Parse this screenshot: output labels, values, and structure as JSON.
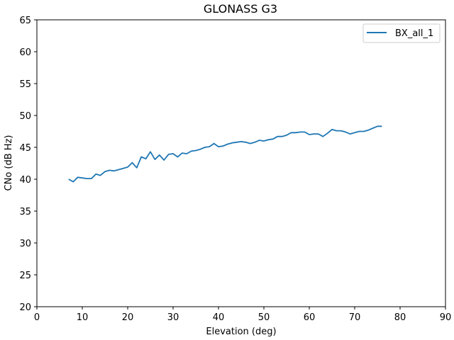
{
  "chart_data": {
    "type": "line",
    "title": "GLONASS G3",
    "xlabel": "Elevation (deg)",
    "ylabel": "CNo (dB Hz)",
    "xlim": [
      0,
      90
    ],
    "ylim": [
      20,
      65
    ],
    "xticks": [
      0,
      10,
      20,
      30,
      40,
      50,
      60,
      70,
      80,
      90
    ],
    "yticks": [
      20,
      25,
      30,
      35,
      40,
      45,
      50,
      55,
      60,
      65
    ],
    "grid": false,
    "legend_position": "top-right",
    "series": [
      {
        "name": "BX_all_1",
        "color": "#1f77b4",
        "x": [
          7,
          8,
          9,
          10,
          11,
          12,
          13,
          14,
          15,
          16,
          17,
          18,
          19,
          20,
          21,
          22,
          23,
          24,
          25,
          26,
          27,
          28,
          29,
          30,
          31,
          32,
          33,
          34,
          35,
          36,
          37,
          38,
          39,
          40,
          41,
          42,
          43,
          44,
          45,
          46,
          47,
          48,
          49,
          50,
          51,
          52,
          53,
          54,
          55,
          56,
          57,
          58,
          59,
          60,
          61,
          62,
          63,
          64,
          65,
          66,
          67,
          68,
          69,
          70,
          71,
          72,
          73,
          74,
          75,
          76
        ],
        "y": [
          40.0,
          39.6,
          40.3,
          40.2,
          40.1,
          40.1,
          40.8,
          40.6,
          41.2,
          41.4,
          41.3,
          41.5,
          41.7,
          41.9,
          42.6,
          41.8,
          43.5,
          43.2,
          44.3,
          43.1,
          43.8,
          43.0,
          43.9,
          44.0,
          43.5,
          44.1,
          44.0,
          44.4,
          44.5,
          44.7,
          45.0,
          45.1,
          45.6,
          45.1,
          45.2,
          45.5,
          45.7,
          45.8,
          45.9,
          45.8,
          45.6,
          45.8,
          46.1,
          46.0,
          46.2,
          46.3,
          46.7,
          46.7,
          46.9,
          47.3,
          47.3,
          47.4,
          47.4,
          47.0,
          47.1,
          47.1,
          46.7,
          47.2,
          47.8,
          47.6,
          47.6,
          47.4,
          47.1,
          47.3,
          47.5,
          47.5,
          47.7,
          48.0,
          48.3,
          48.3
        ]
      }
    ]
  }
}
